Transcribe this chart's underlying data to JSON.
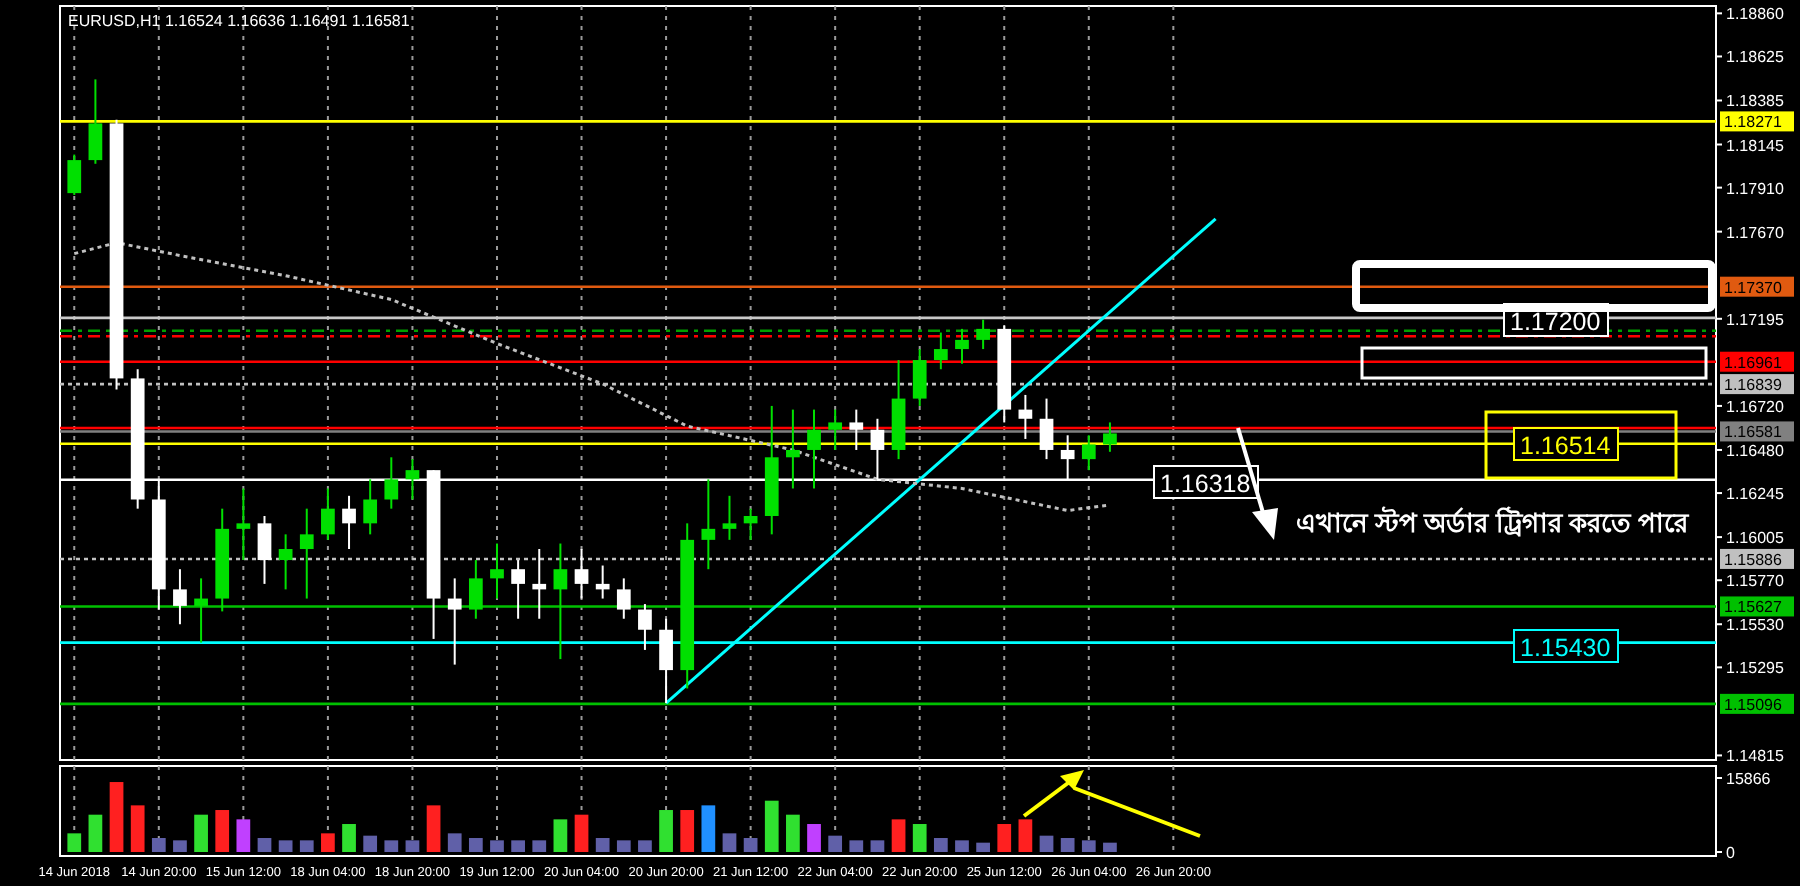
{
  "chart_data": [
    {
      "type": "candlestick",
      "title": "EURUSD,H1  1.16524 1.16636 1.16491 1.16581",
      "categories": [
        null,
        null,
        null,
        null,
        null,
        null,
        null,
        null,
        null,
        null,
        null,
        null,
        null,
        null,
        null,
        null,
        null,
        null,
        null,
        null,
        null,
        null,
        null,
        null,
        null,
        null,
        null,
        null,
        null,
        null,
        null,
        null,
        null,
        null,
        null,
        null,
        null,
        null,
        null,
        null,
        null,
        null,
        null,
        null,
        null,
        null,
        null,
        null,
        null,
        null,
        null,
        null,
        null,
        null,
        null,
        null,
        null,
        null,
        null,
        null,
        null,
        null,
        null,
        null,
        null,
        null,
        null,
        null,
        null,
        null,
        null,
        null,
        null,
        null,
        null,
        null,
        null,
        null
      ],
      "ohlc": [
        [
          1.1788,
          1.1809,
          1.1787,
          1.1806
        ],
        [
          1.1806,
          1.185,
          1.1804,
          1.1826
        ],
        [
          1.1826,
          1.1828,
          1.1681,
          1.1687
        ],
        [
          1.1687,
          1.1692,
          1.1616,
          1.1621
        ],
        [
          1.1621,
          1.1632,
          1.1561,
          1.1572
        ],
        [
          1.1572,
          1.1583,
          1.1553,
          1.1563
        ],
        [
          1.1563,
          1.1578,
          1.1543,
          1.1567
        ],
        [
          1.1567,
          1.1616,
          1.156,
          1.1605
        ],
        [
          1.1605,
          1.1627,
          1.1588,
          1.1608
        ],
        [
          1.1608,
          1.1612,
          1.1575,
          1.1588
        ],
        [
          1.1588,
          1.1602,
          1.1572,
          1.1594
        ],
        [
          1.1594,
          1.1616,
          1.1567,
          1.1602
        ],
        [
          1.1602,
          1.1627,
          1.1599,
          1.1616
        ],
        [
          1.1616,
          1.1623,
          1.1594,
          1.1608
        ],
        [
          1.1608,
          1.1632,
          1.1602,
          1.1621
        ],
        [
          1.1621,
          1.1644,
          1.1616,
          1.1632
        ],
        [
          1.1632,
          1.1643,
          1.1621,
          1.1637
        ],
        [
          1.1637,
          1.1637,
          1.1545,
          1.1567
        ],
        [
          1.1567,
          1.1578,
          1.1531,
          1.1561
        ],
        [
          1.1561,
          1.1588,
          1.1556,
          1.1578
        ],
        [
          1.1578,
          1.1597,
          1.1567,
          1.1583
        ],
        [
          1.1583,
          1.1588,
          1.1556,
          1.1575
        ],
        [
          1.1575,
          1.1594,
          1.1556,
          1.1572
        ],
        [
          1.1572,
          1.1597,
          1.1534,
          1.1583
        ],
        [
          1.1583,
          1.1594,
          1.1567,
          1.1575
        ],
        [
          1.1575,
          1.1585,
          1.1567,
          1.1572
        ],
        [
          1.1572,
          1.1578,
          1.1556,
          1.1561
        ],
        [
          1.1561,
          1.1564,
          1.1539,
          1.155
        ],
        [
          1.155,
          1.1556,
          1.151,
          1.1528
        ],
        [
          1.1528,
          1.1608,
          1.1518,
          1.1599
        ],
        [
          1.1599,
          1.1632,
          1.1583,
          1.1605
        ],
        [
          1.1605,
          1.1623,
          1.1599,
          1.1608
        ],
        [
          1.1608,
          1.1616,
          1.1599,
          1.1612
        ],
        [
          1.1612,
          1.1672,
          1.1602,
          1.1644
        ],
        [
          1.1644,
          1.167,
          1.1627,
          1.1648
        ],
        [
          1.1648,
          1.167,
          1.1627,
          1.1659
        ],
        [
          1.1659,
          1.167,
          1.1648,
          1.1663
        ],
        [
          1.1663,
          1.167,
          1.1648,
          1.1659
        ],
        [
          1.1659,
          1.1665,
          1.1632,
          1.1648
        ],
        [
          1.1648,
          1.1697,
          1.1643,
          1.1676
        ],
        [
          1.1676,
          1.1703,
          1.1672,
          1.1697
        ],
        [
          1.1697,
          1.1712,
          1.1692,
          1.1703
        ],
        [
          1.1703,
          1.1714,
          1.1695,
          1.1708
        ],
        [
          1.1708,
          1.1719,
          1.1703,
          1.1714
        ],
        [
          1.1714,
          1.1716,
          1.1663,
          1.167
        ],
        [
          1.167,
          1.1678,
          1.1654,
          1.1665
        ],
        [
          1.1665,
          1.1676,
          1.1643,
          1.1648
        ],
        [
          1.1648,
          1.1656,
          1.1632,
          1.1643
        ],
        [
          1.1643,
          1.1656,
          1.1637,
          1.1651
        ],
        [
          1.1651,
          1.1663,
          1.1647,
          1.1657
        ],
        null,
        null,
        null,
        null,
        null,
        null,
        null,
        null,
        null,
        null,
        null,
        null,
        null,
        null,
        null,
        null,
        null,
        null,
        null,
        null,
        null,
        null,
        null,
        null,
        null,
        null,
        null,
        null
      ],
      "colors": [
        "#00e000",
        "#00e000",
        "#ffffff",
        "#ffffff",
        "#ffffff",
        "#ffffff",
        "#00e000",
        "#00e000",
        "#00e000",
        "#ffffff",
        "#00e000",
        "#00e000",
        "#00e000",
        "#ffffff",
        "#00e000",
        "#00e000",
        "#00e000",
        "#ffffff",
        "#ffffff",
        "#00e000",
        "#00e000",
        "#ffffff",
        "#ffffff",
        "#00e000",
        "#ffffff",
        "#ffffff",
        "#ffffff",
        "#ffffff",
        "#ffffff",
        "#00e000",
        "#00e000",
        "#00e000",
        "#00e000",
        "#00e000",
        "#00e000",
        "#00e000",
        "#00e000",
        "#ffffff",
        "#ffffff",
        "#00e000",
        "#00e000",
        "#00e000",
        "#00e000",
        "#00e000",
        "#ffffff",
        "#ffffff",
        "#ffffff",
        "#ffffff",
        "#00e000",
        "#00e000",
        null,
        null,
        null,
        null,
        null,
        null,
        null,
        null,
        null,
        null,
        null,
        null,
        null,
        null,
        null,
        null,
        null,
        null,
        null,
        null,
        null,
        null,
        null,
        null,
        null,
        null,
        null,
        null
      ],
      "series": [
        {
          "type": "line",
          "color": "#00ffff",
          "values": [
            null,
            null,
            null,
            null,
            null,
            null,
            null,
            null,
            null,
            null,
            null,
            null,
            null,
            null,
            null,
            null,
            null,
            null,
            null,
            null,
            null,
            null,
            null,
            null,
            null,
            null,
            null,
            null,
            1.151,
            null,
            null,
            null,
            null,
            null,
            null,
            null,
            null,
            null,
            null,
            null,
            null,
            null,
            null,
            null,
            null,
            null,
            null,
            null,
            null,
            null,
            null,
            null,
            null,
            null,
            1.1774,
            null,
            null,
            null,
            null,
            null,
            null,
            null,
            null,
            null,
            null,
            null,
            null,
            null,
            null,
            null,
            null,
            null,
            null,
            null,
            null,
            null,
            null,
            null
          ]
        },
        {
          "type": "line",
          "color": "#c0c0c0",
          "line_style": "dotted",
          "values": [
            1.1755,
            null,
            1.1761,
            null,
            null,
            1.1754,
            null,
            null,
            null,
            null,
            1.1743,
            null,
            null,
            null,
            null,
            1.173,
            null,
            null,
            null,
            null,
            1.1706,
            null,
            null,
            null,
            null,
            1.1684,
            null,
            null,
            null,
            1.1661,
            null,
            null,
            null,
            null,
            1.1648,
            null,
            null,
            null,
            1.1632,
            null,
            null,
            null,
            1.1627,
            null,
            null,
            null,
            null,
            1.1615,
            null,
            1.1618,
            null,
            null,
            null,
            null,
            null,
            null,
            null,
            null,
            null,
            null,
            null,
            null,
            null,
            null,
            null,
            null,
            null,
            null,
            null,
            null,
            null,
            null,
            null,
            null,
            null,
            null,
            null,
            null
          ]
        }
      ],
      "ylim": [
        1.1479,
        1.189
      ],
      "yticks": [
        {
          "value": 1.1886,
          "label": "1.18860"
        },
        {
          "value": 1.18625,
          "label": "1.18625"
        },
        {
          "value": 1.18385,
          "label": "1.18385"
        },
        {
          "value": 1.18145,
          "label": "1.18145"
        },
        {
          "value": 1.1791,
          "label": "1.17910"
        },
        {
          "value": 1.1767,
          "label": "1.17670"
        },
        {
          "value": 1.17195,
          "label": "1.17195"
        },
        {
          "value": 1.1672,
          "label": "1.16720"
        },
        {
          "value": 1.1648,
          "label": "1.16480"
        },
        {
          "value": 1.16245,
          "label": "1.16245"
        },
        {
          "value": 1.16005,
          "label": "1.16005"
        },
        {
          "value": 1.1577,
          "label": "1.15770"
        },
        {
          "value": 1.1553,
          "label": "1.15530"
        },
        {
          "value": 1.15295,
          "label": "1.15295"
        },
        {
          "value": 1.14815,
          "label": "1.14815"
        }
      ],
      "tick_labels": "y",
      "grid": "x",
      "ref_lines": [
        {
          "axis": "y",
          "value": 1.18271,
          "label": "1.18271",
          "color": "#ffff00"
        },
        {
          "axis": "y",
          "value": 1.1737,
          "label": "1.17370",
          "color": "#e05a10"
        },
        {
          "axis": "y",
          "value": 1.172,
          "color": "#c8c8c8"
        },
        {
          "axis": "y",
          "value": 1.1713,
          "color": "#00a000",
          "line_style": "dashed"
        },
        {
          "axis": "y",
          "value": 1.171,
          "color": "#ff0000",
          "line_style": "dashed"
        },
        {
          "axis": "y",
          "value": 1.16961,
          "label": "1.16961",
          "color": "#ff0000"
        },
        {
          "axis": "y",
          "value": 1.16839,
          "label": "1.16839",
          "color": "#c0c0c0",
          "line_style": "dotted"
        },
        {
          "axis": "y",
          "value": 1.166,
          "color": "#ff0000"
        },
        {
          "axis": "y",
          "value": 1.16581,
          "label": "1.16581",
          "color": "#808080"
        },
        {
          "axis": "y",
          "value": 1.16514,
          "color": "#ffff00"
        },
        {
          "axis": "y",
          "value": 1.16318,
          "color": "#ffffff"
        },
        {
          "axis": "y",
          "value": 1.15886,
          "label": "1.15886",
          "color": "#c0c0c0",
          "line_style": "dotted"
        },
        {
          "axis": "y",
          "value": 1.15627,
          "label": "1.15627",
          "color": "#00c000"
        },
        {
          "axis": "y",
          "value": 1.1543,
          "color": "#00ffff"
        },
        {
          "axis": "y",
          "value": 1.15096,
          "label": "1.15096",
          "color": "#00c000"
        }
      ],
      "annotations": [
        "1.17200",
        "1.16514",
        "1.16318",
        "1.15430",
        "এখানে স্টপ অর্ডার ট্রিগার করতে পারে"
      ]
    },
    {
      "type": "bar",
      "categories": [
        "14 Jun 2018",
        null,
        null,
        null,
        "14 Jun 20:00",
        null,
        null,
        null,
        "15 Jun 12:00",
        null,
        null,
        null,
        "18 Jun 04:00",
        null,
        null,
        null,
        "18 Jun 20:00",
        null,
        null,
        null,
        "19 Jun 12:00",
        null,
        null,
        null,
        "20 Jun 04:00",
        null,
        null,
        null,
        "20 Jun 20:00",
        null,
        null,
        null,
        "21 Jun 12:00",
        null,
        null,
        null,
        "22 Jun 04:00",
        null,
        null,
        null,
        "22 Jun 20:00",
        null,
        null,
        null,
        "25 Jun 12:00",
        null,
        null,
        null,
        "26 Jun 04:00",
        null,
        null,
        null,
        "26 Jun 20:00",
        null,
        null,
        null,
        null,
        null,
        null,
        null,
        null,
        null,
        null,
        null,
        null,
        null,
        null,
        null,
        null,
        null,
        null,
        null,
        null,
        null,
        null,
        null,
        null,
        null
      ],
      "values": [
        4000,
        8000,
        15000,
        10000,
        3000,
        2500,
        8000,
        9000,
        7000,
        3000,
        2500,
        2500,
        4000,
        6000,
        3500,
        2500,
        2500,
        10000,
        4000,
        3000,
        2500,
        2500,
        2500,
        7000,
        8000,
        3000,
        2500,
        2500,
        9000,
        9000,
        10000,
        4000,
        3000,
        11000,
        8000,
        6000,
        3500,
        2500,
        2500,
        7000,
        6000,
        3000,
        2500,
        2000,
        6000,
        7000,
        3500,
        3000,
        2500,
        2000,
        null,
        null,
        null,
        null,
        null,
        null,
        null,
        null,
        null,
        null,
        null,
        null,
        null,
        null,
        null,
        null,
        null,
        null,
        null,
        null,
        null,
        null,
        null,
        null,
        null,
        null,
        null,
        null
      ],
      "colors": [
        "#30e030",
        "#30e030",
        "#ff2020",
        "#ff2020",
        "#6060a8",
        "#6060a8",
        "#30e030",
        "#ff2020",
        "#c040ff",
        "#6060a8",
        "#6060a8",
        "#6060a8",
        "#ff2020",
        "#30e030",
        "#6060a8",
        "#6060a8",
        "#6060a8",
        "#ff2020",
        "#6060a8",
        "#6060a8",
        "#6060a8",
        "#6060a8",
        "#6060a8",
        "#30e030",
        "#ff2020",
        "#6060a8",
        "#6060a8",
        "#6060a8",
        "#30e030",
        "#ff2020",
        "#2090ff",
        "#6060a8",
        "#6060a8",
        "#30e030",
        "#30e030",
        "#c040ff",
        "#6060a8",
        "#6060a8",
        "#6060a8",
        "#ff2020",
        "#30e030",
        "#6060a8",
        "#6060a8",
        "#6060a8",
        "#ff2020",
        "#ff2020",
        "#6060a8",
        "#6060a8",
        "#6060a8",
        "#6060a8",
        null,
        null,
        null,
        null,
        null,
        null,
        null,
        null,
        null,
        null,
        null,
        null,
        null,
        null,
        null,
        null,
        null,
        null,
        null,
        null,
        null,
        null,
        null,
        null,
        null,
        null,
        null,
        null
      ],
      "ylim": [
        0,
        15866
      ],
      "yticks": [
        0,
        15866
      ],
      "grid": "x"
    }
  ]
}
